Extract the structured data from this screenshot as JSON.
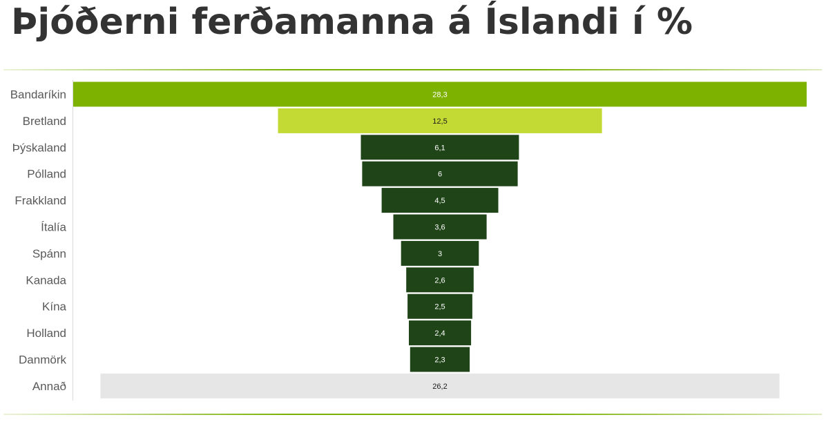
{
  "title": "Þjóðerni ferðamanna á Íslandi í %",
  "colors": {
    "title": "#333333",
    "rule": "#7ab000",
    "axis_label": "#595959",
    "bar_primary": "#7db300",
    "bar_secondary": "#c3d934",
    "bar_dark": "#1f4418",
    "bar_other": "#e6e6e6"
  },
  "chart_data": {
    "type": "bar",
    "orientation": "horizontal",
    "style": "funnel",
    "title": "Þjóðerni ferðamanna á Íslandi í %",
    "categories": [
      "Bandaríkin",
      "Bretland",
      "Þýskaland",
      "Pólland",
      "Frakkland",
      "Ítalía",
      "Spánn",
      "Kanada",
      "Kína",
      "Holland",
      "Danmörk",
      "Annað"
    ],
    "values": [
      28.3,
      12.5,
      6.1,
      6,
      4.5,
      3.6,
      3,
      2.6,
      2.5,
      2.4,
      2.3,
      26.2
    ],
    "value_labels": [
      "28,3",
      "12,5",
      "6,1",
      "6",
      "4,5",
      "3,6",
      "3",
      "2,6",
      "2,5",
      "2,4",
      "2,3",
      "26,2"
    ],
    "bar_colors": [
      "#7db300",
      "#c3d934",
      "#1f4418",
      "#1f4418",
      "#1f4418",
      "#1f4418",
      "#1f4418",
      "#1f4418",
      "#1f4418",
      "#1f4418",
      "#1f4418",
      "#e6e6e6"
    ],
    "label_colors": [
      "#ffffff",
      "#1a1a1a",
      "#ffffff",
      "#ffffff",
      "#ffffff",
      "#ffffff",
      "#ffffff",
      "#ffffff",
      "#ffffff",
      "#ffffff",
      "#ffffff",
      "#1a1a1a"
    ],
    "xlim": [
      0,
      28.3
    ],
    "grid": false,
    "legend": "none"
  }
}
